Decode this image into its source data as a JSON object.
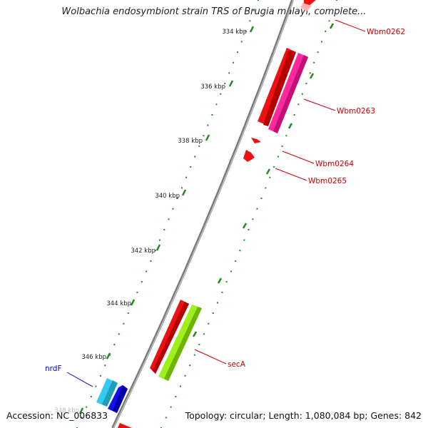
{
  "header": {
    "title": "Wolbachia endosymbiont strain TRS of Brugia malayi, complete..."
  },
  "footer": {
    "accession": "Accession: NC_006833",
    "summary": "Topology: circular; Length: 1,080,084 bp; Genes: 842"
  },
  "colors": {
    "backbone": "#7a7a7a",
    "tick": "#1f8a1f",
    "gene_red": "#ee1111",
    "gene_pink": "#ff2b9e",
    "gene_green": "#9ef01a",
    "gene_cyan": "#33ccee",
    "gene_blue": "#1010ee",
    "label_red": "#cc0000",
    "label_blue": "#0000cc"
  },
  "map": {
    "kbp_labels": [
      "334 kbp",
      "336 kbp",
      "338 kbp",
      "340 kbp",
      "342 kbp",
      "344 kbp",
      "346 kbp",
      "348 kbp"
    ],
    "genes": [
      {
        "label": "Wbm0262",
        "color": "red"
      },
      {
        "label": "Wbm0263",
        "color": "red"
      },
      {
        "label": "Wbm0264",
        "color": "red"
      },
      {
        "label": "Wbm0265",
        "color": "red"
      },
      {
        "label": "secA",
        "color": "red"
      },
      {
        "label": "nrdF",
        "color": "blue"
      }
    ]
  }
}
